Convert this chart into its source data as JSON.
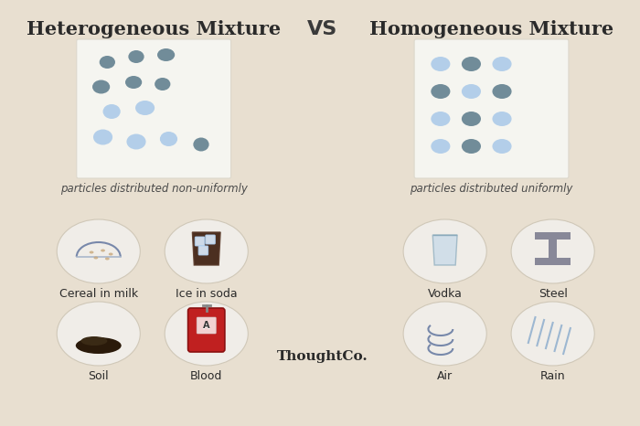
{
  "bg_color": "#e8dfd0",
  "title_left": "Heterogeneous Mixture",
  "title_right": "Homogeneous Mixture",
  "vs_text": "VS",
  "subtitle_left": "particles distributed non-uniformly",
  "subtitle_right": "particles distributed uniformly",
  "thoughtco_text": "ThoughtCo.",
  "left_examples": [
    "Cereal in milk",
    "Ice in soda",
    "Soil",
    "Blood"
  ],
  "right_examples": [
    "Vodka",
    "Steel",
    "Air",
    "Rain"
  ],
  "dark_dot_color": "#5a7a8a",
  "light_dot_color": "#a8c8e8",
  "panel_color": "#f5f5f0",
  "oval_color": "#f0ede8",
  "title_fontsize": 15,
  "vs_fontsize": 16,
  "label_fontsize": 9,
  "subtitle_fontsize": 8.5
}
